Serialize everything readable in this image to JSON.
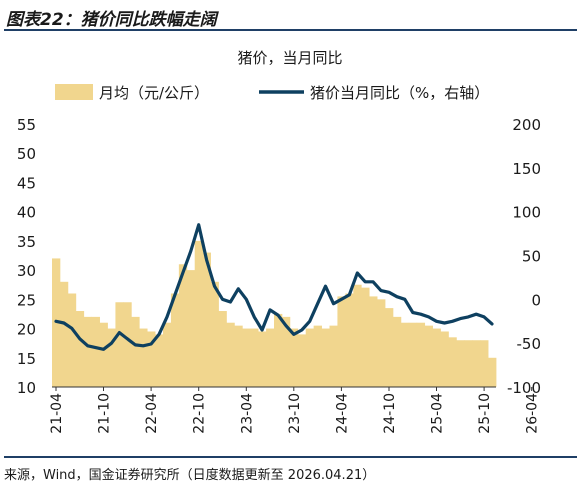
{
  "figure_title": "图表22：猪价同比跌幅走阔",
  "source": "来源，Wind，国金证券研究所（日度数据更新至 2026.04.21）",
  "colors": {
    "bar": "#f1d68e",
    "line": "#0e4060",
    "rule": "#1f3f66"
  },
  "chart_data": {
    "type": "bar",
    "title": "猪价，当月同比",
    "legend_position": "top",
    "grid": false,
    "x_tick_labels": [
      "21-04",
      "21-10",
      "22-04",
      "22-10",
      "23-04",
      "23-10",
      "24-04",
      "24-10",
      "25-04",
      "25-10",
      "26-04"
    ],
    "y_left": {
      "ylim": [
        10,
        55
      ],
      "ticks": [
        10,
        15,
        20,
        25,
        30,
        35,
        40,
        45,
        50,
        55
      ]
    },
    "y_right": {
      "ylim": [
        -100,
        200
      ],
      "ticks": [
        -100,
        -50,
        0,
        50,
        100,
        150,
        200
      ]
    },
    "series": [
      {
        "name": "月均（元/公斤）",
        "type": "bar",
        "axis": "left",
        "values": [
          32,
          28,
          26,
          23,
          22,
          22,
          21,
          20,
          24.5,
          24.5,
          22,
          20,
          19.5,
          19,
          21,
          26,
          31,
          30,
          35,
          33,
          28,
          23,
          21,
          20.5,
          20,
          20,
          19.5,
          20,
          22.5,
          22,
          20,
          19,
          20,
          20.5,
          20,
          20.5,
          25.5,
          26,
          27.5,
          27,
          25.5,
          25,
          23.5,
          22,
          21,
          21,
          21,
          20.5,
          20,
          19.5,
          18.5,
          18,
          18,
          18,
          18,
          15
        ]
      },
      {
        "name": "猪价当月同比（%，右轴）",
        "type": "line",
        "axis": "right",
        "values": [
          -25,
          -27,
          -33,
          -45,
          -53,
          -55,
          -57,
          -50,
          -38,
          -45,
          -52,
          -53,
          -51,
          -40,
          -20,
          5,
          30,
          55,
          85,
          45,
          15,
          0,
          -3,
          12,
          0,
          -20,
          -35,
          -12,
          -18,
          -30,
          -40,
          -35,
          -25,
          -5,
          15,
          -5,
          0,
          5,
          30,
          20,
          20,
          10,
          8,
          3,
          0,
          -15,
          -17,
          -20,
          -25,
          -27,
          -25,
          -22,
          -20,
          -17,
          -20,
          -28
        ]
      }
    ]
  }
}
